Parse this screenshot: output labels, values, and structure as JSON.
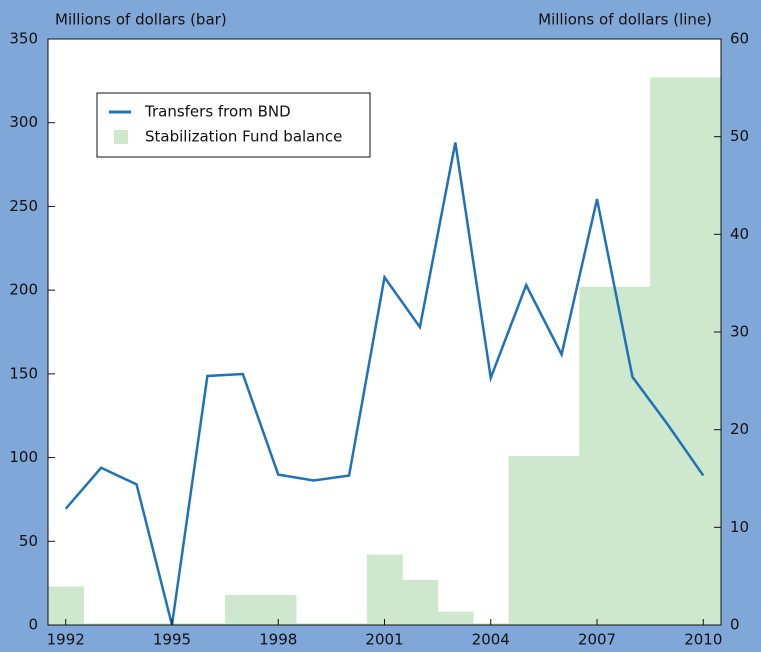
{
  "chart_data": {
    "type": "bar-line",
    "y_label": "Millions of dollars (bar)",
    "y2_label": "Millions of dollars (line)",
    "x": [
      1992,
      1993,
      1994,
      1995,
      1996,
      1997,
      1998,
      1999,
      2000,
      2001,
      2002,
      2003,
      2004,
      2005,
      2006,
      2007,
      2008,
      2009,
      2010
    ],
    "xlim": [
      1991.5,
      2010.5
    ],
    "xticks": [
      1992,
      1995,
      1998,
      2001,
      2004,
      2007,
      2010
    ],
    "ylim": [
      0,
      350
    ],
    "yticks": [
      0,
      50,
      100,
      150,
      200,
      250,
      300,
      350
    ],
    "y2lim": [
      0,
      60
    ],
    "y2ticks": [
      0,
      10,
      20,
      30,
      40,
      50,
      60
    ],
    "legend": "upper left",
    "series": [
      {
        "name": "Transfers from BND",
        "type": "line",
        "axis": "y2",
        "color": "#1f72b8",
        "values": [
          11.9,
          16.1,
          14.4,
          0,
          25.5,
          25.7,
          15.4,
          14.8,
          15.3,
          35.6,
          30.5,
          49.4,
          25.3,
          34.8,
          27.7,
          43.6,
          25.4,
          20.5,
          15.3
        ]
      },
      {
        "name": "Stabilization Fund balance",
        "type": "bar",
        "axis": "y",
        "color": "#cde8cc",
        "values": [
          23,
          1,
          1,
          1,
          1,
          18,
          18,
          1,
          1,
          42,
          27,
          8,
          1,
          101,
          101,
          202,
          202,
          327,
          327
        ]
      }
    ]
  }
}
